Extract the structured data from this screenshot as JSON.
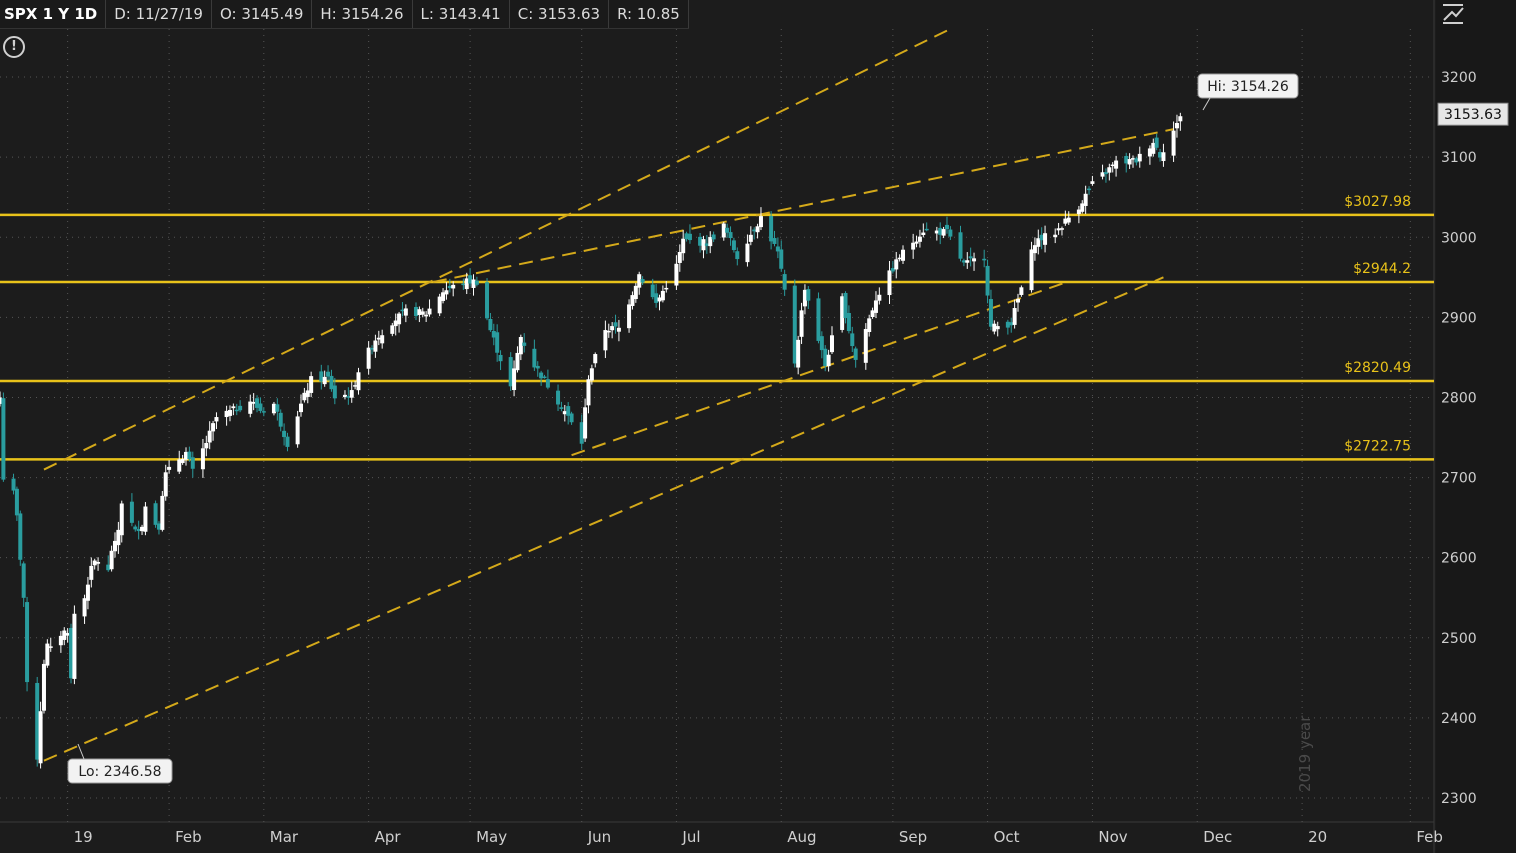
{
  "header": {
    "symbol": "SPX 1 Y 1D",
    "date": "D: 11/27/19",
    "open": "O: 3145.49",
    "high": "H: 3154.26",
    "low": "L: 3143.41",
    "close": "C: 3153.63",
    "range": "R: 10.85"
  },
  "icons": {
    "warning": "exclamation-circle-icon",
    "tool": "drawing-tool-icon"
  },
  "colors": {
    "background": "#1c1c1c",
    "up": "#ffffff",
    "down": "#2a9d9f",
    "level": "#e8c21a",
    "trend": "#d4a91a",
    "grid": "#555555"
  },
  "chart_data": {
    "type": "candlestick",
    "title": "",
    "xlabel": "",
    "ylabel": "",
    "y_range": [
      2270,
      3260
    ],
    "x_range": [
      "2018-12-13",
      "2020-02-10"
    ],
    "y_ticks": [
      2300,
      2400,
      2500,
      2600,
      2700,
      2800,
      2900,
      3000,
      3100,
      3200
    ],
    "x_ticks": [
      {
        "label": "19",
        "date": "2019-01-02"
      },
      {
        "label": "Feb",
        "date": "2019-02-01"
      },
      {
        "label": "Mar",
        "date": "2019-03-01"
      },
      {
        "label": "Apr",
        "date": "2019-04-01"
      },
      {
        "label": "May",
        "date": "2019-05-01"
      },
      {
        "label": "Jun",
        "date": "2019-06-03"
      },
      {
        "label": "Jul",
        "date": "2019-07-01"
      },
      {
        "label": "Aug",
        "date": "2019-08-01"
      },
      {
        "label": "Sep",
        "date": "2019-09-03"
      },
      {
        "label": "Oct",
        "date": "2019-10-01"
      },
      {
        "label": "Nov",
        "date": "2019-11-01"
      },
      {
        "label": "Dec",
        "date": "2019-12-02"
      },
      {
        "label": "20",
        "date": "2020-01-02"
      },
      {
        "label": "Feb",
        "date": "2020-02-03"
      }
    ],
    "year_watermark": "2019 year",
    "last_price": "3153.63",
    "hi_label": "Hi: 3154.26",
    "lo_label": "Lo: 2346.58",
    "levels": [
      {
        "value": 3027.98,
        "label": "$3027.98"
      },
      {
        "value": 2944.2,
        "label": "$2944.2"
      },
      {
        "value": 2820.49,
        "label": "$2820.49"
      },
      {
        "value": 2722.75,
        "label": "$2722.75"
      }
    ],
    "trendlines": [
      {
        "from": [
          "2018-12-26",
          2710
        ],
        "to": [
          "2019-09-20",
          3260
        ]
      },
      {
        "from": [
          "2018-12-26",
          2346.58
        ],
        "to": [
          "2019-11-22",
          2950
        ]
      },
      {
        "from": [
          "2019-05-31",
          2728
        ],
        "to": [
          "2019-10-25",
          2945
        ]
      },
      {
        "from": [
          "2019-04-20",
          2944
        ],
        "to": [
          "2019-11-25",
          3135
        ]
      }
    ],
    "path": [
      [
        "2018-12-13",
        2800
      ],
      [
        "2018-12-14",
        2700
      ],
      [
        "2018-12-17",
        2680
      ],
      [
        "2018-12-18",
        2650
      ],
      [
        "2018-12-19",
        2600
      ],
      [
        "2018-12-20",
        2550
      ],
      [
        "2018-12-21",
        2440
      ],
      [
        "2018-12-24",
        2351
      ],
      [
        "2018-12-26",
        2470
      ],
      [
        "2018-12-27",
        2490
      ],
      [
        "2018-12-28",
        2485
      ],
      [
        "2018-12-31",
        2505
      ],
      [
        "2019-01-02",
        2510
      ],
      [
        "2019-01-03",
        2448
      ],
      [
        "2019-01-04",
        2530
      ],
      [
        "2019-01-07",
        2550
      ],
      [
        "2019-01-08",
        2570
      ],
      [
        "2019-01-09",
        2585
      ],
      [
        "2019-01-10",
        2595
      ],
      [
        "2019-01-11",
        2596
      ],
      [
        "2019-01-14",
        2582
      ],
      [
        "2019-01-15",
        2610
      ],
      [
        "2019-01-16",
        2616
      ],
      [
        "2019-01-17",
        2635
      ],
      [
        "2019-01-18",
        2670
      ],
      [
        "2019-01-22",
        2632
      ],
      [
        "2019-01-23",
        2638
      ],
      [
        "2019-01-24",
        2642
      ],
      [
        "2019-01-25",
        2664
      ],
      [
        "2019-01-28",
        2643
      ],
      [
        "2019-01-29",
        2640
      ],
      [
        "2019-01-30",
        2681
      ],
      [
        "2019-01-31",
        2704
      ],
      [
        "2019-02-04",
        2724
      ],
      [
        "2019-02-06",
        2731
      ],
      [
        "2019-02-08",
        2707
      ],
      [
        "2019-02-12",
        2744
      ],
      [
        "2019-02-15",
        2775
      ],
      [
        "2019-02-20",
        2784
      ],
      [
        "2019-02-25",
        2796
      ],
      [
        "2019-02-28",
        2784
      ],
      [
        "2019-03-04",
        2792
      ],
      [
        "2019-03-08",
        2743
      ],
      [
        "2019-03-12",
        2791
      ],
      [
        "2019-03-15",
        2822
      ],
      [
        "2019-03-20",
        2824
      ],
      [
        "2019-03-22",
        2800
      ],
      [
        "2019-03-27",
        2805
      ],
      [
        "2019-03-29",
        2834
      ],
      [
        "2019-04-03",
        2873
      ],
      [
        "2019-04-08",
        2895
      ],
      [
        "2019-04-12",
        2907
      ],
      [
        "2019-04-18",
        2905
      ],
      [
        "2019-04-23",
        2933
      ],
      [
        "2019-04-30",
        2945
      ],
      [
        "2019-05-03",
        2945
      ],
      [
        "2019-05-07",
        2884
      ],
      [
        "2019-05-13",
        2812
      ],
      [
        "2019-05-16",
        2876
      ],
      [
        "2019-05-20",
        2840
      ],
      [
        "2019-05-23",
        2822
      ],
      [
        "2019-05-29",
        2783
      ],
      [
        "2019-06-03",
        2744
      ],
      [
        "2019-06-05",
        2826
      ],
      [
        "2019-06-10",
        2886
      ],
      [
        "2019-06-14",
        2886
      ],
      [
        "2019-06-20",
        2954
      ],
      [
        "2019-06-25",
        2917
      ],
      [
        "2019-07-01",
        2964
      ],
      [
        "2019-07-03",
        2996
      ],
      [
        "2019-07-10",
        2993
      ],
      [
        "2019-07-15",
        3014
      ],
      [
        "2019-07-19",
        2976
      ],
      [
        "2019-07-26",
        3025
      ],
      [
        "2019-07-31",
        2980
      ],
      [
        "2019-08-02",
        2932
      ],
      [
        "2019-08-05",
        2844
      ],
      [
        "2019-08-08",
        2938
      ],
      [
        "2019-08-14",
        2840
      ],
      [
        "2019-08-19",
        2923
      ],
      [
        "2019-08-23",
        2847
      ],
      [
        "2019-08-29",
        2924
      ],
      [
        "2019-09-05",
        2976
      ],
      [
        "2019-09-12",
        3009
      ],
      [
        "2019-09-19",
        3006
      ],
      [
        "2019-09-24",
        2966
      ],
      [
        "2019-09-30",
        2976
      ],
      [
        "2019-10-02",
        2887
      ],
      [
        "2019-10-08",
        2893
      ],
      [
        "2019-10-15",
        2995
      ],
      [
        "2019-10-21",
        3006
      ],
      [
        "2019-10-28",
        3039
      ],
      [
        "2019-11-01",
        3066
      ],
      [
        "2019-11-08",
        3093
      ],
      [
        "2019-11-14",
        3096
      ],
      [
        "2019-11-19",
        3120
      ],
      [
        "2019-11-21",
        3103
      ],
      [
        "2019-11-25",
        3133
      ],
      [
        "2019-11-26",
        3140
      ],
      [
        "2019-11-27",
        3153.63
      ]
    ]
  }
}
